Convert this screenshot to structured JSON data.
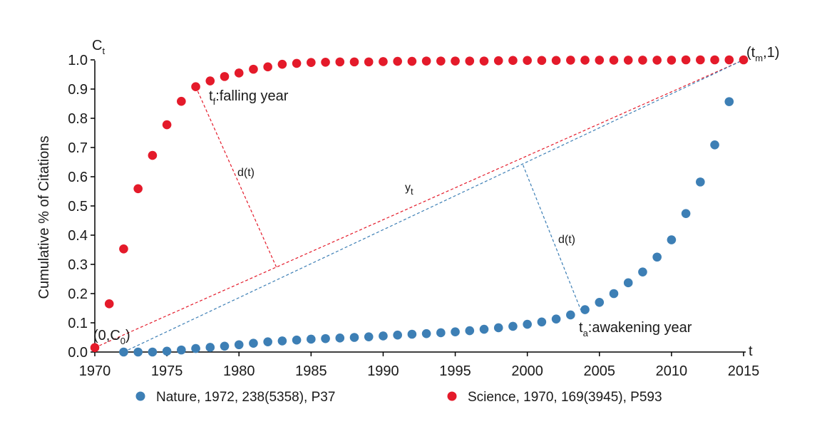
{
  "chart_data": {
    "type": "scatter",
    "title": "",
    "xlabel": "t",
    "ylabel": "Cumulative % of Citations",
    "y_axis_symbol": "C",
    "y_axis_symbol_sub": "t",
    "xlim": [
      1970,
      2015
    ],
    "ylim": [
      0,
      1.0
    ],
    "xticks": [
      "1970",
      "1975",
      "1980",
      "1985",
      "1990",
      "1995",
      "2000",
      "2005",
      "2010",
      "2015"
    ],
    "yticks": [
      "0.0",
      "0.1",
      "0.2",
      "0.3",
      "0.4",
      "0.5",
      "0.6",
      "0.7",
      "0.8",
      "0.9",
      "1.0"
    ],
    "grid": false,
    "legend_position": "bottom",
    "series": [
      {
        "name": "Nature, 1972, 238(5358), P37",
        "color": "#3d7fb5",
        "x": [
          1972,
          1973,
          1974,
          1975,
          1976,
          1977,
          1978,
          1979,
          1980,
          1981,
          1982,
          1983,
          1984,
          1985,
          1986,
          1987,
          1988,
          1989,
          1990,
          1991,
          1992,
          1993,
          1994,
          1995,
          1996,
          1997,
          1998,
          1999,
          2000,
          2001,
          2002,
          2003,
          2004,
          2005,
          2006,
          2007,
          2008,
          2009,
          2010,
          2011,
          2012,
          2013,
          2014
        ],
        "values": [
          0.0,
          0.0,
          0.0,
          0.003,
          0.007,
          0.012,
          0.016,
          0.02,
          0.025,
          0.03,
          0.035,
          0.038,
          0.041,
          0.044,
          0.046,
          0.048,
          0.05,
          0.052,
          0.055,
          0.058,
          0.061,
          0.063,
          0.066,
          0.069,
          0.073,
          0.078,
          0.083,
          0.088,
          0.095,
          0.103,
          0.113,
          0.127,
          0.145,
          0.17,
          0.2,
          0.237,
          0.274,
          0.325,
          0.384,
          0.474,
          0.582,
          0.709,
          0.857
        ]
      },
      {
        "name": "Science, 1970, 169(3945), P593",
        "color": "#e41a2a",
        "x": [
          1970,
          1971,
          1972,
          1973,
          1974,
          1975,
          1976,
          1977,
          1978,
          1979,
          1980,
          1981,
          1982,
          1983,
          1984,
          1985,
          1986,
          1987,
          1988,
          1989,
          1990,
          1991,
          1992,
          1993,
          1994,
          1995,
          1996,
          1997,
          1998,
          1999,
          2000,
          2001,
          2002,
          2003,
          2004,
          2005,
          2006,
          2007,
          2008,
          2009,
          2010,
          2011,
          2012,
          2013,
          2014,
          2015
        ],
        "values": [
          0.015,
          0.165,
          0.353,
          0.559,
          0.673,
          0.778,
          0.858,
          0.908,
          0.928,
          0.943,
          0.955,
          0.968,
          0.976,
          0.985,
          0.988,
          0.991,
          0.992,
          0.993,
          0.993,
          0.993,
          0.994,
          0.995,
          0.995,
          0.996,
          0.996,
          0.996,
          0.996,
          0.996,
          0.997,
          0.998,
          0.998,
          0.998,
          0.998,
          0.999,
          0.999,
          0.999,
          0.999,
          0.999,
          0.999,
          0.999,
          0.999,
          1.0,
          1.0,
          1.0,
          1.0,
          1.0
        ]
      }
    ],
    "reference_lines": [
      {
        "name": "science-baseline",
        "color": "#e41a2a",
        "from": [
          1970,
          0.015
        ],
        "to": [
          2015,
          1.0
        ]
      },
      {
        "name": "nature-baseline",
        "color": "#3d7fb5",
        "from": [
          1972,
          0.0
        ],
        "to": [
          2015,
          1.0
        ]
      },
      {
        "name": "science-distance",
        "color": "#e41a2a",
        "from": [
          1977,
          0.908
        ],
        "to": [
          1982.6,
          0.29
        ]
      },
      {
        "name": "nature-distance",
        "color": "#3d7fb5",
        "from": [
          1999.7,
          0.64
        ],
        "to": [
          2003.7,
          0.145
        ]
      }
    ],
    "annotations": {
      "falling_year": {
        "main": "t",
        "sub": "f",
        "rest": ":falling year"
      },
      "awakening_year": {
        "main": "t",
        "sub": "a",
        "rest": ":awakening year"
      },
      "end_point": {
        "pre": "(t",
        "sub": "m",
        "post": ",1)"
      },
      "start_point": {
        "pre": "(0,C",
        "sub": "0",
        "post": ")"
      },
      "yt_label": {
        "main": "y",
        "sub": "t"
      },
      "distance_label_science": "d(t)",
      "distance_label_nature": "d(t)"
    }
  }
}
